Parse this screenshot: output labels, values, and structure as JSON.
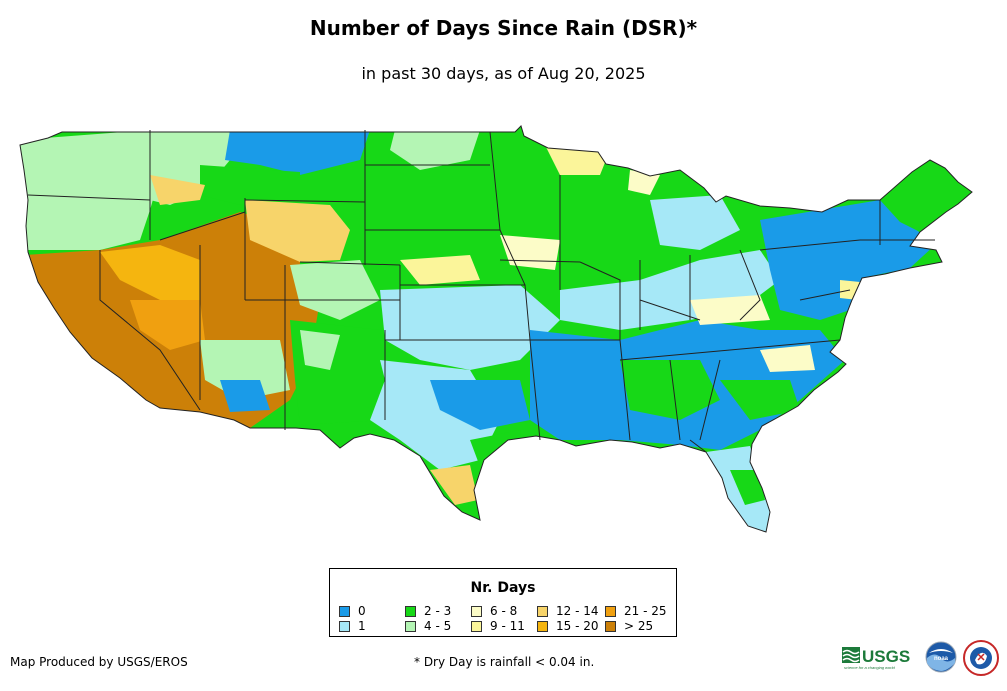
{
  "title": "Number of Days Since Rain (DSR)*",
  "subtitle": "in past 30 days, as of Aug 20, 2025",
  "legend": {
    "title": "Nr. Days",
    "items": [
      {
        "label": "0",
        "color": "#1a9be8"
      },
      {
        "label": "1",
        "color": "#a6e8f7"
      },
      {
        "label": "2 - 3",
        "color": "#17d817"
      },
      {
        "label": "4 - 5",
        "color": "#b4f5b4"
      },
      {
        "label": "6 - 8",
        "color": "#fcfcc8"
      },
      {
        "label": "9 - 11",
        "color": "#fbf59a"
      },
      {
        "label": "12 - 14",
        "color": "#f7d46a"
      },
      {
        "label": "15 - 20",
        "color": "#f5b50f"
      },
      {
        "label": "21 - 25",
        "color": "#f0a010"
      },
      {
        "label": "> 25",
        "color": "#cc8008"
      }
    ]
  },
  "credit": "Map Produced by USGS/EROS",
  "footnote": "* Dry Day is rainfall < 0.04 in.",
  "logos": {
    "usgs": "USGS",
    "usgs_tagline": "science for a changing world",
    "noaa": "noaa"
  },
  "colors": {
    "state_border": "#222222",
    "usgs_green": "#1c7a3a",
    "noaa_blue": "#1d5aa8"
  }
}
